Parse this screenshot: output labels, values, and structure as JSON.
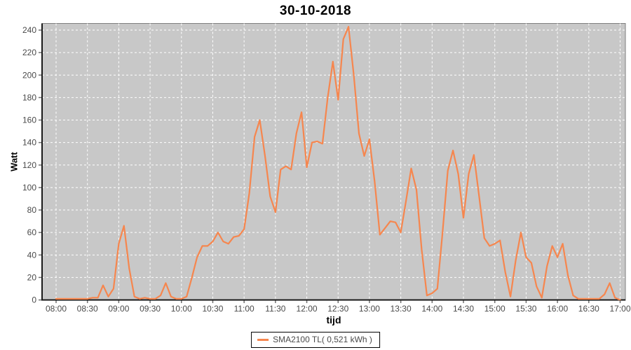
{
  "chart_data": {
    "type": "line",
    "title": "30-10-2018",
    "xlabel": "tijd",
    "ylabel": "Watt",
    "x_tick_labels": [
      "08:00",
      "08:30",
      "09:00",
      "09:30",
      "10:00",
      "10:30",
      "11:00",
      "11:30",
      "12:00",
      "12:30",
      "13:00",
      "13:30",
      "14:00",
      "14:30",
      "15:00",
      "15:30",
      "16:00",
      "16:30",
      "17:00"
    ],
    "y_ticks": [
      0,
      20,
      40,
      60,
      80,
      100,
      120,
      140,
      160,
      180,
      200,
      220,
      240
    ],
    "ylim": [
      0,
      246
    ],
    "x_start": "08:00",
    "x_end": "17:00",
    "sample_interval_minutes": 5,
    "grid": true,
    "legend_position": "bottom",
    "colors": {
      "plot_bg": "#C8C8C8",
      "gridline": "#FFFFFF",
      "series": "#F6864E",
      "tick_label": "#4A4A4A",
      "axis_line": "#1A1A1A",
      "plot_outline": "#7E7E7E",
      "tick_mark": "#707070",
      "legend_text": "#4A4A4A",
      "legend_border": "#000000"
    },
    "series": [
      {
        "name": "SMA2100 TL( 0,521 kWh )",
        "color": "#F6864E",
        "values": [
          1,
          1,
          1,
          1,
          1,
          1,
          1,
          2,
          2,
          13,
          3,
          10,
          50,
          66,
          28,
          3,
          1,
          2,
          1,
          1,
          4,
          15,
          3,
          1,
          1,
          3,
          20,
          38,
          48,
          48,
          52,
          60,
          52,
          50,
          56,
          57,
          63,
          95,
          145,
          160,
          128,
          92,
          78,
          116,
          119,
          116,
          148,
          167,
          118,
          140,
          141,
          139,
          180,
          212,
          178,
          232,
          243,
          200,
          148,
          128,
          143,
          105,
          58,
          64,
          70,
          69,
          60,
          88,
          117,
          98,
          45,
          4,
          6,
          10,
          60,
          115,
          133,
          112,
          73,
          112,
          129,
          92,
          55,
          48,
          50,
          53,
          25,
          3,
          35,
          60,
          38,
          33,
          12,
          2,
          30,
          48,
          38,
          50,
          22,
          4,
          1,
          1,
          1,
          1,
          1,
          5,
          15,
          2,
          0
        ]
      }
    ]
  }
}
